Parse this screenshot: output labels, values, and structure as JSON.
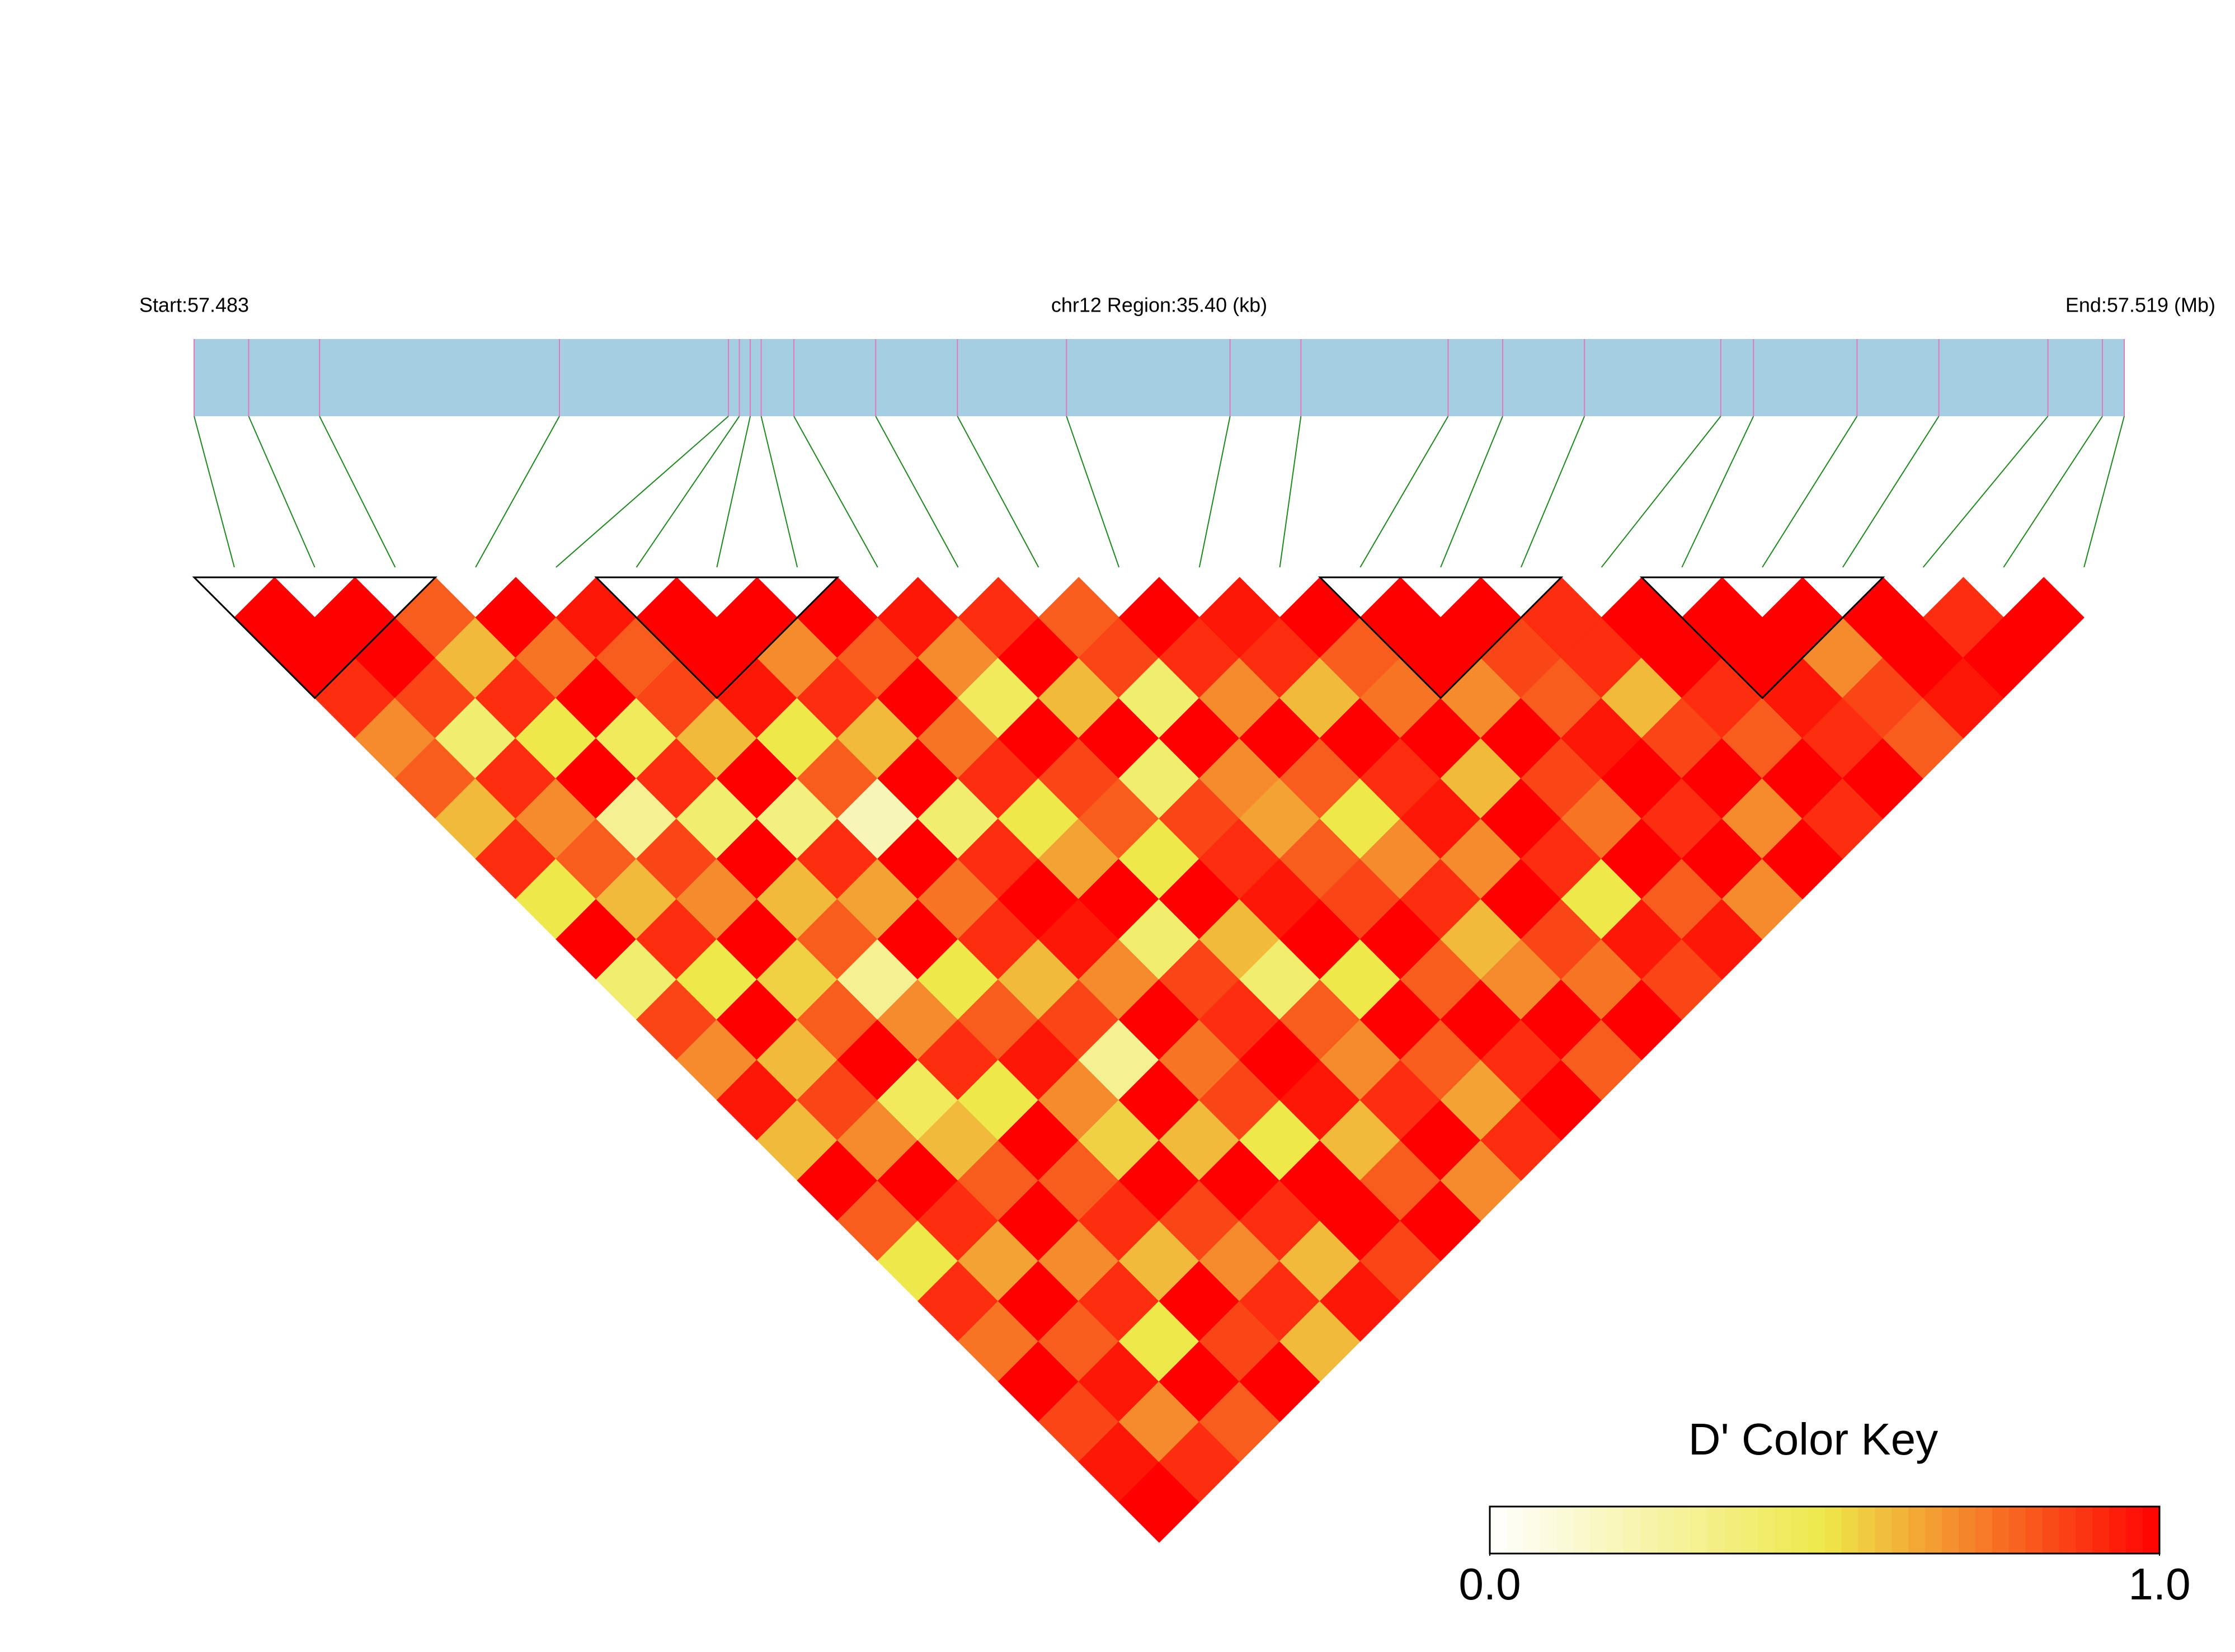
{
  "chart_data": {
    "type": "ld-heatmap",
    "start_label": "Start:57.483",
    "region_label": "chr12 Region:35.40 (kb)",
    "end_label": "End:57.519 (Mb)",
    "region_kb": [
      0,
      35.4
    ],
    "snp_positions_kb": [
      0,
      1.0,
      2.3,
      6.7,
      9.8,
      10.0,
      10.2,
      10.4,
      11.0,
      12.5,
      14.0,
      16.0,
      19.0,
      20.3,
      23.0,
      24.0,
      25.5,
      28.0,
      28.6,
      30.5,
      32.0,
      34.0,
      35.0,
      35.4
    ],
    "dprime": [
      [],
      [
        1
      ],
      [
        1,
        1
      ],
      [
        0.9,
        1,
        0.8
      ],
      [
        0.7,
        0.85,
        0.6,
        1
      ],
      [
        0.8,
        0.4,
        0.9,
        0.75,
        0.95
      ],
      [
        0.6,
        0.9,
        0.5,
        1,
        0.8,
        1
      ],
      [
        0.9,
        0.7,
        1,
        0.45,
        0.85,
        1,
        1
      ],
      [
        0.5,
        0.8,
        0.3,
        0.9,
        0.6,
        0.95,
        0.7,
        1
      ],
      [
        1,
        0.6,
        0.85,
        0.4,
        1,
        0.5,
        0.9,
        0.8,
        0.95
      ],
      [
        0.4,
        0.9,
        0.7,
        1,
        0.35,
        0.8,
        0.6,
        1,
        0.7,
        0.9
      ],
      [
        0.85,
        0.5,
        1,
        0.6,
        0.9,
        0.2,
        1,
        0.75,
        0.45,
        1,
        0.8
      ],
      [
        0.7,
        1,
        0.55,
        0.8,
        0.65,
        1,
        0.4,
        0.9,
        1,
        0.6,
        0.85,
        1
      ],
      [
        0.95,
        0.6,
        0.8,
        0.3,
        1,
        0.75,
        0.9,
        0.5,
        0.85,
        1,
        0.4,
        0.9,
        0.95
      ],
      [
        0.6,
        0.85,
        1,
        0.7,
        0.5,
        0.9,
        1,
        0.65,
        0.8,
        0.4,
        1,
        0.7,
        0.9,
        1
      ],
      [
        1,
        0.7,
        0.45,
        0.9,
        0.8,
        0.6,
        0.95,
        1,
        0.5,
        0.85,
        0.7,
        1,
        0.6,
        0.8,
        1
      ],
      [
        0.8,
        1,
        0.6,
        0.5,
        0.95,
        0.85,
        0.7,
        0.4,
        1,
        0.9,
        0.65,
        0.8,
        1,
        0.75,
        1,
        1
      ],
      [
        0.5,
        0.9,
        0.8,
        1,
        0.7,
        0.3,
        1,
        0.85,
        0.6,
        0.95,
        0.8,
        0.5,
        0.9,
        1,
        0.7,
        0.85,
        0.9
      ],
      [
        0.9,
        0.65,
        1,
        0.8,
        0.55,
        1,
        0.75,
        0.9,
        0.4,
        1,
        0.85,
        0.7,
        0.95,
        0.6,
        1,
        0.8,
        0.9,
        1
      ],
      [
        0.75,
        1,
        0.7,
        0.9,
        1,
        0.6,
        0.85,
        1,
        0.8,
        0.5,
        1,
        0.9,
        0.7,
        1,
        0.85,
        0.95,
        0.6,
        1,
        1
      ],
      [
        1,
        0.8,
        0.9,
        0.6,
        0.85,
        1,
        0.5,
        0.95,
        0.7,
        1,
        0.8,
        0.6,
        1,
        0.9,
        0.75,
        1,
        0.85,
        0.9,
        1,
        1
      ],
      [
        0.85,
        0.95,
        0.5,
        1,
        0.7,
        0.9,
        1,
        0.6,
        0.9,
        0.8,
        1,
        0.7,
        0.85,
        0.5,
        1,
        0.9,
        1,
        0.8,
        0.95,
        0.7,
        1
      ],
      [
        0.95,
        0.7,
        1,
        0.85,
        0.9,
        0.6,
        1,
        0.8,
        1,
        0.65,
        0.9,
        1,
        0.75,
        0.95,
        0.8,
        1,
        0.7,
        1,
        0.9,
        0.85,
        1,
        0.9
      ],
      [
        1,
        0.9,
        0.8,
        1,
        0.6,
        0.95,
        0.85,
        1,
        0.7,
        0.9,
        1,
        0.8,
        1,
        0.85,
        0.95,
        0.7,
        1,
        0.9,
        1,
        0.8,
        0.95,
        1,
        1
      ]
    ],
    "blocks": [
      [
        0,
        2
      ],
      [
        5,
        7
      ],
      [
        14,
        16
      ],
      [
        18,
        20
      ]
    ],
    "key_title": "D' Color Key",
    "key_lim": [
      0,
      1
    ],
    "key_ticks": [
      {
        "value": 0,
        "label": "0.0"
      },
      {
        "value": 1,
        "label": "1.0"
      }
    ],
    "color_scale": [
      {
        "value": 0,
        "color": "#ffffff"
      },
      {
        "value": 0.5,
        "color": "#eee84a"
      },
      {
        "value": 1,
        "color": "#ff0000"
      }
    ]
  }
}
